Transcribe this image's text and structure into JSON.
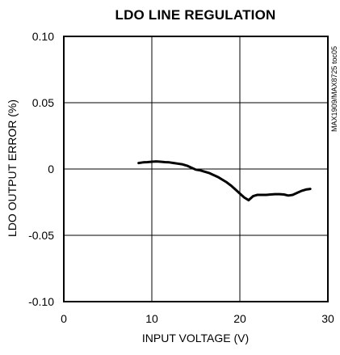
{
  "chart_data": {
    "type": "line",
    "title": "LDO LINE REGULATION",
    "xlabel": "INPUT VOLTAGE (V)",
    "ylabel": "LDO OUTPUT ERROR (%)",
    "xlim": [
      0,
      30
    ],
    "ylim": [
      -0.1,
      0.1
    ],
    "x_ticks": [
      {
        "value": 0,
        "label": "0"
      },
      {
        "value": 10,
        "label": "10"
      },
      {
        "value": 20,
        "label": "20"
      },
      {
        "value": 30,
        "label": "30"
      }
    ],
    "y_ticks": [
      {
        "value": 0.1,
        "label": "0.10"
      },
      {
        "value": 0.05,
        "label": "0.05"
      },
      {
        "value": 0,
        "label": "0"
      },
      {
        "value": -0.05,
        "label": "-0.05"
      },
      {
        "value": -0.1,
        "label": "-0.10"
      }
    ],
    "grid": true,
    "series": [
      {
        "x": [
          8.5,
          9.0,
          9.5,
          10.0,
          10.5,
          11.0,
          11.5,
          12.0,
          12.5,
          13.0,
          13.5,
          14.0,
          14.5,
          15.0,
          15.5,
          16.0,
          16.5,
          17.0,
          17.5,
          18.0,
          18.5,
          19.0,
          19.5,
          20.0,
          20.5,
          21.0,
          21.5,
          22.0,
          22.5,
          23.0,
          23.5,
          24.0,
          24.5,
          25.0,
          25.5,
          26.0,
          26.5,
          27.0,
          27.5,
          28.0
        ],
        "y": [
          0.0045,
          0.005,
          0.0052,
          0.0055,
          0.0057,
          0.0055,
          0.0052,
          0.005,
          0.0045,
          0.004,
          0.0035,
          0.0025,
          0.001,
          -0.0005,
          -0.001,
          -0.002,
          -0.003,
          -0.0045,
          -0.006,
          -0.008,
          -0.01,
          -0.0125,
          -0.0155,
          -0.0185,
          -0.0215,
          -0.0235,
          -0.0205,
          -0.0195,
          -0.0195,
          -0.0195,
          -0.0192,
          -0.019,
          -0.019,
          -0.0192,
          -0.02,
          -0.0195,
          -0.018,
          -0.0165,
          -0.0155,
          -0.015
        ]
      }
    ],
    "annotation": "MAX1909/MAX8725 toc05"
  },
  "colors": {
    "line": "#000000",
    "grid": "#000000",
    "background": "#ffffff"
  }
}
